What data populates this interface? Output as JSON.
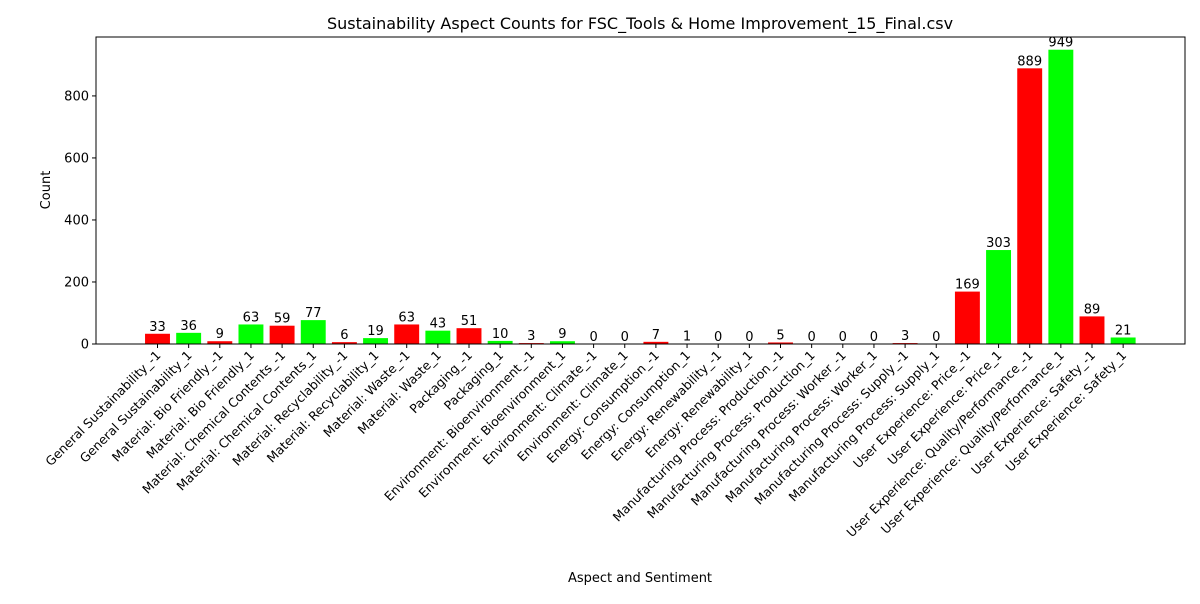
{
  "chart_data": {
    "type": "bar",
    "title": "Sustainability Aspect Counts for FSC_Tools & Home Improvement_15_Final.csv",
    "xlabel": "Aspect and Sentiment",
    "ylabel": "Count",
    "ylim": [
      0,
      990
    ],
    "yticks": [
      0,
      200,
      400,
      600,
      800
    ],
    "grid": false,
    "colors": {
      "negative": "#ff0000",
      "positive": "#00ff00"
    },
    "categories": [
      "General Sustainability_-1",
      "General Sustainability_1",
      "Material: Bio Friendly_-1",
      "Material: Bio Friendly_1",
      "Material: Chemical Contents_-1",
      "Material: Chemical Contents_1",
      "Material: Recyclability_-1",
      "Material: Recyclability_1",
      "Material: Waste_-1",
      "Material: Waste_1",
      "Packaging_-1",
      "Packaging_1",
      "Environment: Bioenvironment_-1",
      "Environment: Bioenvironment_1",
      "Environment: Climate_-1",
      "Environment: Climate_1",
      "Energy: Consumption_-1",
      "Energy: Consumption_1",
      "Energy: Renewability_-1",
      "Energy: Renewability_1",
      "Manufacturing Process: Production_-1",
      "Manufacturing Process: Production_1",
      "Manufacturing Process: Worker_-1",
      "Manufacturing Process: Worker_1",
      "Manufacturing Process: Supply_-1",
      "Manufacturing Process: Supply_1",
      "User Experience: Price_-1",
      "User Experience: Price_1",
      "User Experience: Quality/Performance_-1",
      "User Experience: Quality/Performance_1",
      "User Experience: Safety_-1",
      "User Experience: Safety_1"
    ],
    "values": [
      33,
      36,
      9,
      63,
      59,
      77,
      6,
      19,
      63,
      43,
      51,
      10,
      3,
      9,
      0,
      0,
      7,
      1,
      0,
      0,
      5,
      0,
      0,
      0,
      3,
      0,
      169,
      303,
      889,
      949,
      89,
      21
    ],
    "bar_colors": [
      "#ff0000",
      "#00ff00",
      "#ff0000",
      "#00ff00",
      "#ff0000",
      "#00ff00",
      "#ff0000",
      "#00ff00",
      "#ff0000",
      "#00ff00",
      "#ff0000",
      "#00ff00",
      "#ff0000",
      "#00ff00",
      "#ff0000",
      "#00ff00",
      "#ff0000",
      "#00ff00",
      "#ff0000",
      "#00ff00",
      "#ff0000",
      "#00ff00",
      "#ff0000",
      "#00ff00",
      "#ff0000",
      "#00ff00",
      "#ff0000",
      "#00ff00",
      "#ff0000",
      "#00ff00",
      "#ff0000",
      "#00ff00"
    ]
  }
}
